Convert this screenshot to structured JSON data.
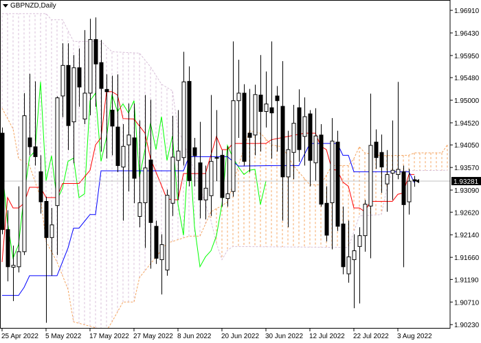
{
  "header": {
    "symbol_timeframe": "GBPNZD,Daily",
    "menu_icon": "triangle-down-icon"
  },
  "colors": {
    "background": "#ffffff",
    "bull_body": "#ffffff",
    "bear_body": "#000000",
    "tenkan": "#ff0000",
    "kijun": "#0000ff",
    "chikou": "#00ff00",
    "senkou_a": "#f4a460",
    "senkou_b": "#d8bfd8",
    "bid_line": "#c0c0c0"
  },
  "chart_data": {
    "type": "candlestick",
    "indicator": "Ichimoku Kinko Hyo",
    "ylim": [
      1.9016,
      1.9713
    ],
    "grid": false,
    "current_price": "1.93281",
    "y_ticks": [
      "1.96910",
      "1.96430",
      "1.95950",
      "1.95480",
      "1.95000",
      "1.94520",
      "1.94050",
      "1.93570",
      "1.93090",
      "1.92620",
      "1.92140",
      "1.91660",
      "1.91190",
      "1.90710",
      "1.90230"
    ],
    "x_ticks": [
      {
        "date": "2022-04-25",
        "label": "25 Apr 2022"
      },
      {
        "date": "2022-05-05",
        "label": "5 May 2022"
      },
      {
        "date": "2022-05-17",
        "label": "17 May 2022"
      },
      {
        "date": "2022-05-27",
        "label": "27 May 2022"
      },
      {
        "date": "2022-06-08",
        "label": "8 Jun 2022"
      },
      {
        "date": "2022-06-20",
        "label": "20 Jun 2022"
      },
      {
        "date": "2022-06-30",
        "label": "30 Jun 2022"
      },
      {
        "date": "2022-07-12",
        "label": "12 Jul 2022"
      },
      {
        "date": "2022-07-22",
        "label": "22 Jul 2022"
      },
      {
        "date": "2022-08-03",
        "label": "3 Aug 2022"
      }
    ],
    "candle_fields": [
      "date",
      "open",
      "high",
      "low",
      "close"
    ],
    "candles": [
      [
        "2022-04-25",
        1.943,
        1.9442,
        1.9215,
        1.9225
      ],
      [
        "2022-04-26",
        1.9225,
        1.9266,
        1.9115,
        1.9146
      ],
      [
        "2022-04-27",
        1.9145,
        1.9191,
        1.9073,
        1.9149
      ],
      [
        "2022-04-28",
        1.9146,
        1.9317,
        1.9134,
        1.9178
      ],
      [
        "2022-04-29",
        1.9178,
        1.9515,
        1.9171,
        1.9467
      ],
      [
        "2022-05-02",
        1.942,
        1.9556,
        1.9383,
        1.9401
      ],
      [
        "2022-05-03",
        1.9401,
        1.954,
        1.9361,
        1.938
      ],
      [
        "2022-05-04",
        1.9348,
        1.9383,
        1.9259,
        1.9284
      ],
      [
        "2022-05-05",
        1.9285,
        1.9295,
        1.9027,
        1.9208
      ],
      [
        "2022-05-06",
        1.9208,
        1.9271,
        1.9127,
        1.9235
      ],
      [
        "2022-05-09",
        1.9276,
        1.9508,
        1.9171,
        1.9505
      ],
      [
        "2022-05-10",
        1.9509,
        1.9621,
        1.9464,
        1.9574
      ],
      [
        "2022-05-11",
        1.9574,
        1.9621,
        1.9394,
        1.9446
      ],
      [
        "2022-05-12",
        1.9454,
        1.9596,
        1.9366,
        1.9569
      ],
      [
        "2022-05-13",
        1.9569,
        1.961,
        1.9486,
        1.9528
      ],
      [
        "2022-05-16",
        1.946,
        1.9649,
        1.9449,
        1.9515
      ],
      [
        "2022-05-17",
        1.9515,
        1.9673,
        1.9468,
        1.9629
      ],
      [
        "2022-05-18",
        1.9629,
        1.9676,
        1.9486,
        1.9577
      ],
      [
        "2022-05-19",
        1.958,
        1.9628,
        1.9391,
        1.9525
      ],
      [
        "2022-05-20",
        1.9523,
        1.9555,
        1.9376,
        1.9518
      ],
      [
        "2022-05-23",
        1.9479,
        1.9552,
        1.9383,
        1.9445
      ],
      [
        "2022-05-24",
        1.9443,
        1.9555,
        1.9347,
        1.9361
      ],
      [
        "2022-05-25",
        1.9358,
        1.9449,
        1.9244,
        1.9402
      ],
      [
        "2022-05-26",
        1.9405,
        1.9493,
        1.9306,
        1.9426
      ],
      [
        "2022-05-27",
        1.942,
        1.9493,
        1.9281,
        1.9334
      ],
      [
        "2022-05-30",
        1.9253,
        1.9457,
        1.923,
        1.9282
      ],
      [
        "2022-05-31",
        1.9282,
        1.9511,
        1.9186,
        1.9356
      ],
      [
        "2022-06-01",
        1.9373,
        1.9501,
        1.9142,
        1.924
      ],
      [
        "2022-06-02",
        1.9232,
        1.9244,
        1.9152,
        1.9164
      ],
      [
        "2022-06-03",
        1.9161,
        1.9215,
        1.9087,
        1.9193
      ],
      [
        "2022-06-06",
        1.9139,
        1.931,
        1.9127,
        1.9298
      ],
      [
        "2022-06-07",
        1.9281,
        1.9467,
        1.9254,
        1.9379
      ],
      [
        "2022-06-08",
        1.9372,
        1.9479,
        1.9288,
        1.9392
      ],
      [
        "2022-06-09",
        1.9378,
        1.9603,
        1.9361,
        1.9539
      ],
      [
        "2022-06-10",
        1.954,
        1.9572,
        1.9317,
        1.9329
      ],
      [
        "2022-06-13",
        1.9399,
        1.942,
        1.9317,
        1.9382
      ],
      [
        "2022-06-14",
        1.9367,
        1.9454,
        1.9249,
        1.9288
      ],
      [
        "2022-06-15",
        1.9288,
        1.9361,
        1.9247,
        1.9313
      ],
      [
        "2022-06-16",
        1.9297,
        1.9511,
        1.9254,
        1.937
      ],
      [
        "2022-06-17",
        1.9378,
        1.9479,
        1.9328,
        1.9377
      ],
      [
        "2022-06-20",
        1.9383,
        1.9394,
        1.9274,
        1.9293
      ],
      [
        "2022-06-21",
        1.9291,
        1.9402,
        1.9274,
        1.9301
      ],
      [
        "2022-06-22",
        1.9306,
        1.9625,
        1.9295,
        1.9499
      ],
      [
        "2022-06-23",
        1.9499,
        1.9586,
        1.942,
        1.9515
      ],
      [
        "2022-06-24",
        1.9515,
        1.9534,
        1.9361,
        1.937
      ],
      [
        "2022-06-27",
        1.943,
        1.9524,
        1.9347,
        1.9421
      ],
      [
        "2022-06-28",
        1.9426,
        1.9533,
        1.9383,
        1.9512
      ],
      [
        "2022-06-29",
        1.9511,
        1.9596,
        1.9391,
        1.9476
      ],
      [
        "2022-06-30",
        1.9476,
        1.9561,
        1.9442,
        1.9492
      ],
      [
        "2022-07-01",
        1.9484,
        1.9625,
        1.9376,
        1.9473
      ],
      [
        "2022-07-04",
        1.9509,
        1.953,
        1.9391,
        1.9499
      ],
      [
        "2022-07-05",
        1.9487,
        1.9583,
        1.9244,
        1.9337
      ],
      [
        "2022-07-06",
        1.9337,
        1.9435,
        1.923,
        1.9395
      ],
      [
        "2022-07-07",
        1.9389,
        1.949,
        1.9332,
        1.9451
      ],
      [
        "2022-07-08",
        1.9484,
        1.9523,
        1.9369,
        1.9395
      ],
      [
        "2022-07-11",
        1.9423,
        1.9506,
        1.9361,
        1.9465
      ],
      [
        "2022-07-12",
        1.9471,
        1.9479,
        1.9317,
        1.9372
      ],
      [
        "2022-07-13",
        1.9367,
        1.9483,
        1.9329,
        1.9424
      ],
      [
        "2022-07-14",
        1.9426,
        1.9449,
        1.9274,
        1.9279
      ],
      [
        "2022-07-15",
        1.9281,
        1.9317,
        1.92,
        1.9213
      ],
      [
        "2022-07-18",
        1.9282,
        1.9462,
        1.9183,
        1.9413
      ],
      [
        "2022-07-19",
        1.9411,
        1.9435,
        1.9222,
        1.9232
      ],
      [
        "2022-07-20",
        1.9237,
        1.9274,
        1.913,
        1.9146
      ],
      [
        "2022-07-21",
        1.9131,
        1.9244,
        1.9112,
        1.9167
      ],
      [
        "2022-07-22",
        1.9161,
        1.9215,
        1.9058,
        1.918
      ],
      [
        "2022-07-25",
        1.9189,
        1.923,
        1.9068,
        1.9212
      ],
      [
        "2022-07-26",
        1.9212,
        1.9288,
        1.9178,
        1.9279
      ],
      [
        "2022-07-27",
        1.9275,
        1.9514,
        1.9164,
        1.9404
      ],
      [
        "2022-07-28",
        1.9411,
        1.9438,
        1.9354,
        1.9378
      ],
      [
        "2022-07-29",
        1.9389,
        1.9427,
        1.9303,
        1.9358
      ],
      [
        "2022-08-01",
        1.9322,
        1.9394,
        1.9263,
        1.9342
      ],
      [
        "2022-08-02",
        1.9345,
        1.9457,
        1.9288,
        1.9351
      ],
      [
        "2022-08-03",
        1.9342,
        1.9539,
        1.9332,
        1.9353
      ],
      [
        "2022-08-04",
        1.9348,
        1.9361,
        1.9145,
        1.9278
      ],
      [
        "2022-08-05",
        1.9284,
        1.9354,
        1.9257,
        1.9328
      ],
      [
        "2022-08-08",
        1.9331,
        1.9339,
        1.9316,
        1.93281
      ]
    ],
    "tenkan_sen": [
      [
        "2022-04-25",
        1.9156
      ],
      [
        "2022-04-26",
        1.9293
      ],
      [
        "2022-04-27",
        1.9271
      ],
      [
        "2022-04-28",
        1.9271
      ],
      [
        "2022-04-29",
        1.9281
      ],
      [
        "2022-05-02",
        1.9315
      ],
      [
        "2022-05-04",
        1.9315
      ],
      [
        "2022-05-05",
        1.9293
      ],
      [
        "2022-05-09",
        1.9293
      ],
      [
        "2022-05-10",
        1.9323
      ],
      [
        "2022-05-13",
        1.9323
      ],
      [
        "2022-05-17",
        1.9351
      ],
      [
        "2022-05-18",
        1.9405
      ],
      [
        "2022-05-19",
        1.942
      ],
      [
        "2022-05-20",
        1.9518
      ],
      [
        "2022-05-23",
        1.9518
      ],
      [
        "2022-05-24",
        1.9511
      ],
      [
        "2022-05-25",
        1.9461
      ],
      [
        "2022-05-27",
        1.946
      ],
      [
        "2022-05-31",
        1.943
      ],
      [
        "2022-06-01",
        1.9376
      ],
      [
        "2022-06-06",
        1.929
      ],
      [
        "2022-06-08",
        1.9288
      ],
      [
        "2022-06-09",
        1.9344
      ],
      [
        "2022-06-15",
        1.9344
      ],
      [
        "2022-06-17",
        1.9423
      ],
      [
        "2022-06-20",
        1.9395
      ],
      [
        "2022-06-21",
        1.9395
      ],
      [
        "2022-06-22",
        1.9408
      ],
      [
        "2022-06-30",
        1.9408
      ],
      [
        "2022-07-01",
        1.9416
      ],
      [
        "2022-07-11",
        1.943
      ],
      [
        "2022-07-13",
        1.943
      ],
      [
        "2022-07-14",
        1.9402
      ],
      [
        "2022-07-15",
        1.9395
      ],
      [
        "2022-07-18",
        1.9353
      ],
      [
        "2022-07-19",
        1.9351
      ],
      [
        "2022-07-20",
        1.9326
      ],
      [
        "2022-07-21",
        1.9317
      ],
      [
        "2022-07-22",
        1.9271
      ],
      [
        "2022-07-25",
        1.9271
      ],
      [
        "2022-07-26",
        1.9263
      ],
      [
        "2022-07-27",
        1.9285
      ],
      [
        "2022-08-02",
        1.9285
      ],
      [
        "2022-08-03",
        1.93
      ],
      [
        "2022-08-04",
        1.9303
      ],
      [
        "2022-08-05",
        1.9342
      ],
      [
        "2022-08-08",
        1.9342
      ]
    ],
    "kijun_sen": [
      [
        "2022-04-25",
        1.9085
      ],
      [
        "2022-04-28",
        1.9085
      ],
      [
        "2022-04-29",
        1.9102
      ],
      [
        "2022-05-02",
        1.9127
      ],
      [
        "2022-05-09",
        1.9127
      ],
      [
        "2022-05-11",
        1.9186
      ],
      [
        "2022-05-12",
        1.9228
      ],
      [
        "2022-05-13",
        1.9228
      ],
      [
        "2022-05-17",
        1.9257
      ],
      [
        "2022-05-18",
        1.9257
      ],
      [
        "2022-05-19",
        1.935
      ],
      [
        "2022-06-09",
        1.935
      ],
      [
        "2022-06-10",
        1.938
      ],
      [
        "2022-06-21",
        1.938
      ],
      [
        "2022-06-23",
        1.936
      ],
      [
        "2022-07-04",
        1.9361
      ],
      [
        "2022-07-08",
        1.9361
      ],
      [
        "2022-07-12",
        1.9408
      ],
      [
        "2022-07-19",
        1.9408
      ],
      [
        "2022-07-20",
        1.9383
      ],
      [
        "2022-07-21",
        1.9383
      ],
      [
        "2022-07-22",
        1.9348
      ],
      [
        "2022-08-05",
        1.9348
      ],
      [
        "2022-08-08",
        1.9325
      ]
    ],
    "chikou_span": "close shifted back 26 periods",
    "senkou_span_a": [
      [
        "2022-04-25",
        1.9483
      ],
      [
        "2022-04-27",
        1.9439
      ],
      [
        "2022-04-28",
        1.9376
      ],
      [
        "2022-05-02",
        1.9361
      ],
      [
        "2022-05-04",
        1.9293
      ],
      [
        "2022-05-05",
        1.92
      ],
      [
        "2022-05-09",
        1.9156
      ],
      [
        "2022-05-11",
        1.9098
      ],
      [
        "2022-05-12",
        1.9029
      ],
      [
        "2022-05-20",
        1.901
      ],
      [
        "2022-05-23",
        1.9029
      ],
      [
        "2022-05-25",
        1.9071
      ],
      [
        "2022-05-27",
        1.9071
      ],
      [
        "2022-05-30",
        1.9123
      ],
      [
        "2022-06-06",
        1.9196
      ],
      [
        "2022-06-10",
        1.9211
      ],
      [
        "2022-06-14",
        1.9211
      ],
      [
        "2022-06-16",
        1.9263
      ],
      [
        "2022-06-20",
        1.9276
      ],
      [
        "2022-06-21",
        1.9284
      ],
      [
        "2022-06-23",
        1.9361
      ],
      [
        "2022-06-27",
        1.9435
      ],
      [
        "2022-06-29",
        1.943
      ],
      [
        "2022-07-01",
        1.9405
      ],
      [
        "2022-07-05",
        1.9401
      ],
      [
        "2022-07-07",
        1.9361
      ],
      [
        "2022-07-12",
        1.932
      ],
      [
        "2022-07-14",
        1.932
      ],
      [
        "2022-07-18",
        1.9361
      ],
      [
        "2022-07-21",
        1.9361
      ],
      [
        "2022-07-22",
        1.9376
      ],
      [
        "2022-07-25",
        1.9401
      ],
      [
        "2022-07-26",
        1.9388
      ],
      [
        "2022-07-29",
        1.9382
      ],
      [
        "2022-08-05",
        1.9383
      ],
      [
        "2022-08-08",
        1.9388
      ],
      [
        "2022-08-15",
        1.9388
      ],
      [
        "2022-08-16",
        1.9405
      ]
    ],
    "senkou_span_b": [
      [
        "2022-04-25",
        1.9684
      ],
      [
        "2022-05-05",
        1.9684
      ],
      [
        "2022-05-06",
        1.9671
      ],
      [
        "2022-05-10",
        1.9671
      ],
      [
        "2022-05-12",
        1.9625
      ],
      [
        "2022-05-19",
        1.9625
      ],
      [
        "2022-05-23",
        1.9603
      ],
      [
        "2022-05-30",
        1.96
      ],
      [
        "2022-06-01",
        1.9571
      ],
      [
        "2022-06-03",
        1.9534
      ],
      [
        "2022-06-07",
        1.952
      ],
      [
        "2022-06-08",
        1.9439
      ],
      [
        "2022-06-13",
        1.9351
      ],
      [
        "2022-06-16",
        1.9244
      ],
      [
        "2022-06-17",
        1.9196
      ],
      [
        "2022-06-20",
        1.9161
      ],
      [
        "2022-06-21",
        1.9181
      ],
      [
        "2022-06-22",
        1.9189
      ],
      [
        "2022-07-21",
        1.9187
      ],
      [
        "2022-07-25",
        1.9254
      ],
      [
        "2022-07-29",
        1.9257
      ],
      [
        "2022-08-01",
        1.9313
      ],
      [
        "2022-08-02",
        1.935
      ],
      [
        "2022-08-16",
        1.9351
      ]
    ]
  }
}
